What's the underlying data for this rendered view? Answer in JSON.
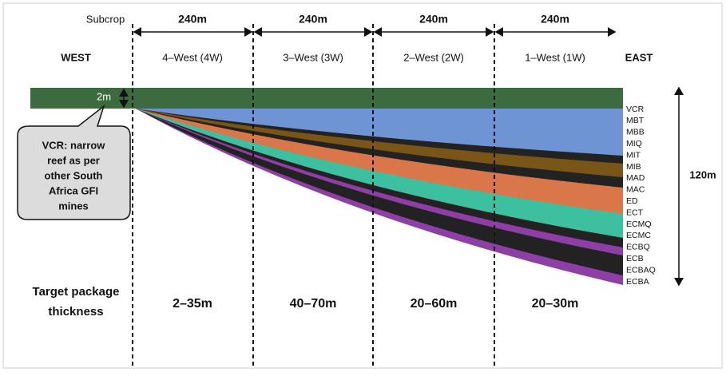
{
  "top": {
    "subcrop": "Subcrop",
    "widths": [
      "240m",
      "240m",
      "240m",
      "240m"
    ]
  },
  "sides": {
    "west": "WEST",
    "east": "EAST"
  },
  "zones": [
    "4–West (4W)",
    "3–West (3W)",
    "2–West (2W)",
    "1–West (1W)"
  ],
  "reef_thickness": "2m",
  "callout": {
    "lines": [
      "VCR: narrow",
      "reef as per",
      "other South",
      "Africa GFI",
      "mines"
    ]
  },
  "layers": [
    "VCR",
    "MBT",
    "MBB",
    "MIQ",
    "MIT",
    "MIB",
    "MAD",
    "MAC",
    "ED",
    "ECT",
    "ECMQ",
    "ECMC",
    "ECBQ",
    "ECB",
    "ECBAQ",
    "ECBA"
  ],
  "total_thickness": "120m",
  "package": {
    "label_lines": [
      "Target package",
      "thickness"
    ],
    "thicknesses": [
      "2–35m",
      "40–70m",
      "20–60m",
      "20–30m"
    ]
  }
}
